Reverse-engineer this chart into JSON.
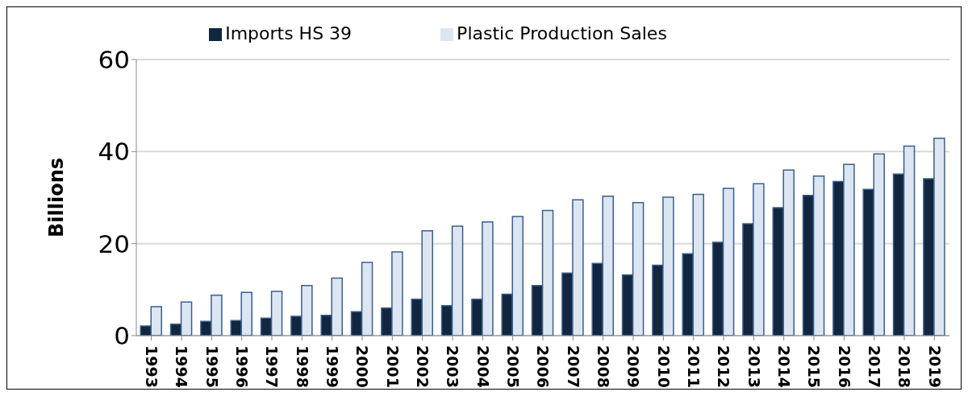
{
  "chart_data": {
    "type": "bar",
    "ylabel": "Billions",
    "categories": [
      "1993",
      "1994",
      "1995",
      "1996",
      "1997",
      "1998",
      "1999",
      "2000",
      "2001",
      "2002",
      "2003",
      "2004",
      "2005",
      "2006",
      "2007",
      "2008",
      "2009",
      "2010",
      "2011",
      "2012",
      "2013",
      "2014",
      "2015",
      "2016",
      "2017",
      "2018",
      "2019"
    ],
    "series": [
      {
        "name": "Imports HS 39",
        "color": "#12263f",
        "values": [
          2.1,
          2.5,
          3.1,
          3.3,
          3.8,
          4.2,
          4.4,
          5.2,
          6,
          7.9,
          6.5,
          7.9,
          9,
          10.9,
          13.6,
          15.7,
          13.2,
          15.3,
          17.8,
          20.3,
          24.3,
          27.8,
          30.5,
          33.5,
          31.8,
          35.1,
          34.1
        ]
      },
      {
        "name": "Plastic Production Sales",
        "color": "#dce6f2",
        "values": [
          6.3,
          7.3,
          8.8,
          9.4,
          9.6,
          10.9,
          12.5,
          15.9,
          18.2,
          22.8,
          23.8,
          24.7,
          25.9,
          27.2,
          29.5,
          30.3,
          28.9,
          30.1,
          30.7,
          32,
          33,
          36,
          34.7,
          37.2,
          39.5,
          41.2,
          42.9
        ]
      }
    ],
    "ylim": [
      0,
      60
    ],
    "yticks": [
      0,
      20,
      40,
      60
    ],
    "grid": "y",
    "legend": "top"
  }
}
